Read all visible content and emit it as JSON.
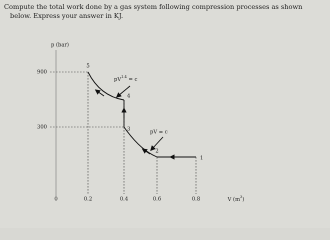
{
  "question": {
    "lines": [
      "Compute the total work done by a gas system following compression processes as shown",
      "below. Express your answer in KJ."
    ]
  },
  "diagram": {
    "y_axis_label": "p (bar)",
    "x_axis_label": {
      "base": "V (m",
      "exponent": "3",
      "end": ")"
    },
    "y_ticks": [
      "900",
      "300"
    ],
    "x_ticks": [
      "0",
      "0.2",
      "0.4",
      "0.6",
      "0.8"
    ],
    "points": [
      "5",
      "4",
      "3",
      "2",
      "1"
    ],
    "curve_labels": [
      {
        "base": "pV",
        "exponent": "1.4",
        "rest": " = c"
      },
      {
        "base": "pV = c"
      }
    ]
  }
}
